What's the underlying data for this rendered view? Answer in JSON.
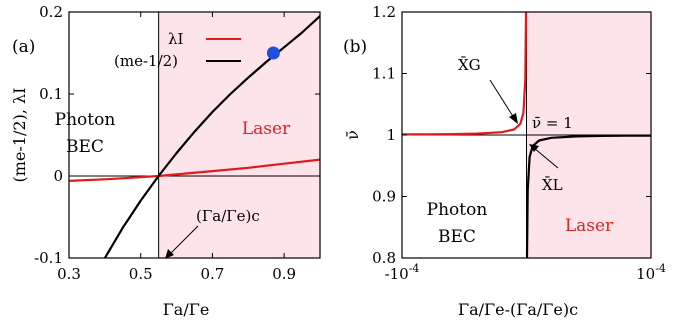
{
  "colors": {
    "laser_region": "#fce4ea",
    "red_curve": "#e31a1c",
    "black_curve": "#000000",
    "marker": "#1f4fe0",
    "text_red": "#d62728"
  },
  "chart_data": [
    {
      "type": "line",
      "panel_label": "(a)",
      "xlabel": "Γa/Γe",
      "ylabel": "(me-1/2), λI",
      "xlim": [
        0.3,
        1.0
      ],
      "ylim": [
        -0.1,
        0.2
      ],
      "xticks": [
        0.3,
        0.5,
        0.7,
        0.9
      ],
      "xtick_labels": [
        "0.3",
        "0.5",
        "0.7",
        "0.9"
      ],
      "yticks": [
        -0.1,
        0,
        0.1,
        0.2
      ],
      "ytick_labels": [
        "-0.1",
        "0",
        "0.1",
        "0.2"
      ],
      "critical_x": 0.55,
      "legend_position": "top-right",
      "series": [
        {
          "name": "λI",
          "color": "#e31a1c",
          "x": [
            0.3,
            0.4,
            0.5,
            0.55,
            0.6,
            0.7,
            0.8,
            0.9,
            1.0
          ],
          "y": [
            -0.006,
            -0.004,
            -0.0015,
            0.0,
            0.002,
            0.006,
            0.01,
            0.015,
            0.02
          ]
        },
        {
          "name": "(me-1/2)",
          "color": "#000000",
          "x": [
            0.4,
            0.45,
            0.5,
            0.55,
            0.6,
            0.65,
            0.7,
            0.75,
            0.8,
            0.85,
            0.9,
            0.95,
            1.0
          ],
          "y": [
            -0.102,
            -0.063,
            -0.03,
            0.0,
            0.028,
            0.054,
            0.078,
            0.1,
            0.12,
            0.139,
            0.157,
            0.175,
            0.195
          ]
        }
      ],
      "marker_point": {
        "x": 0.87,
        "y": 0.15
      },
      "annotations": [
        {
          "text": "Photon",
          "subtext": "BEC"
        },
        {
          "text": "Laser"
        },
        {
          "text": "(Γa/Γe)c"
        }
      ]
    },
    {
      "type": "line",
      "panel_label": "(b)",
      "xlabel": "Γa/Γe-(Γa/Γe)c",
      "ylabel": "ν̄",
      "xlim": [
        -0.0001,
        0.0001
      ],
      "ylim": [
        0.8,
        1.2
      ],
      "xticks": [
        -0.0001,
        0.0001
      ],
      "xtick_labels": [
        "-10-4",
        "10-4"
      ],
      "yticks": [
        0.8,
        0.9,
        1.0,
        1.1,
        1.2
      ],
      "ytick_labels": [
        "0.8",
        "0.9",
        "1",
        "1.1",
        "1.2"
      ],
      "series": [
        {
          "name": "X̄G",
          "color": "#e31a1c",
          "x": [
            -0.0001,
            -8e-05,
            -6e-05,
            -4e-05,
            -2e-05,
            -1e-05,
            -5e-06,
            -2.5e-06,
            -1e-06,
            -4e-07
          ],
          "y": [
            1.0009,
            1.0011,
            1.0015,
            1.0022,
            1.0045,
            1.009,
            1.018,
            1.036,
            1.09,
            1.2
          ]
        },
        {
          "name": "X̄L",
          "color": "#000000",
          "x": [
            4e-07,
            1e-06,
            2.5e-06,
            5e-06,
            1e-05,
            2e-05,
            4e-05,
            6e-05,
            8e-05,
            0.0001
          ],
          "y": [
            0.8,
            0.91,
            0.964,
            0.982,
            0.991,
            0.9955,
            0.9978,
            0.9985,
            0.9989,
            0.9991
          ]
        }
      ],
      "reference_line": {
        "label": "ν̄ = 1",
        "y": 1.0
      },
      "annotations": [
        {
          "text": "Photon",
          "subtext": "BEC"
        },
        {
          "text": "Laser"
        }
      ]
    }
  ]
}
